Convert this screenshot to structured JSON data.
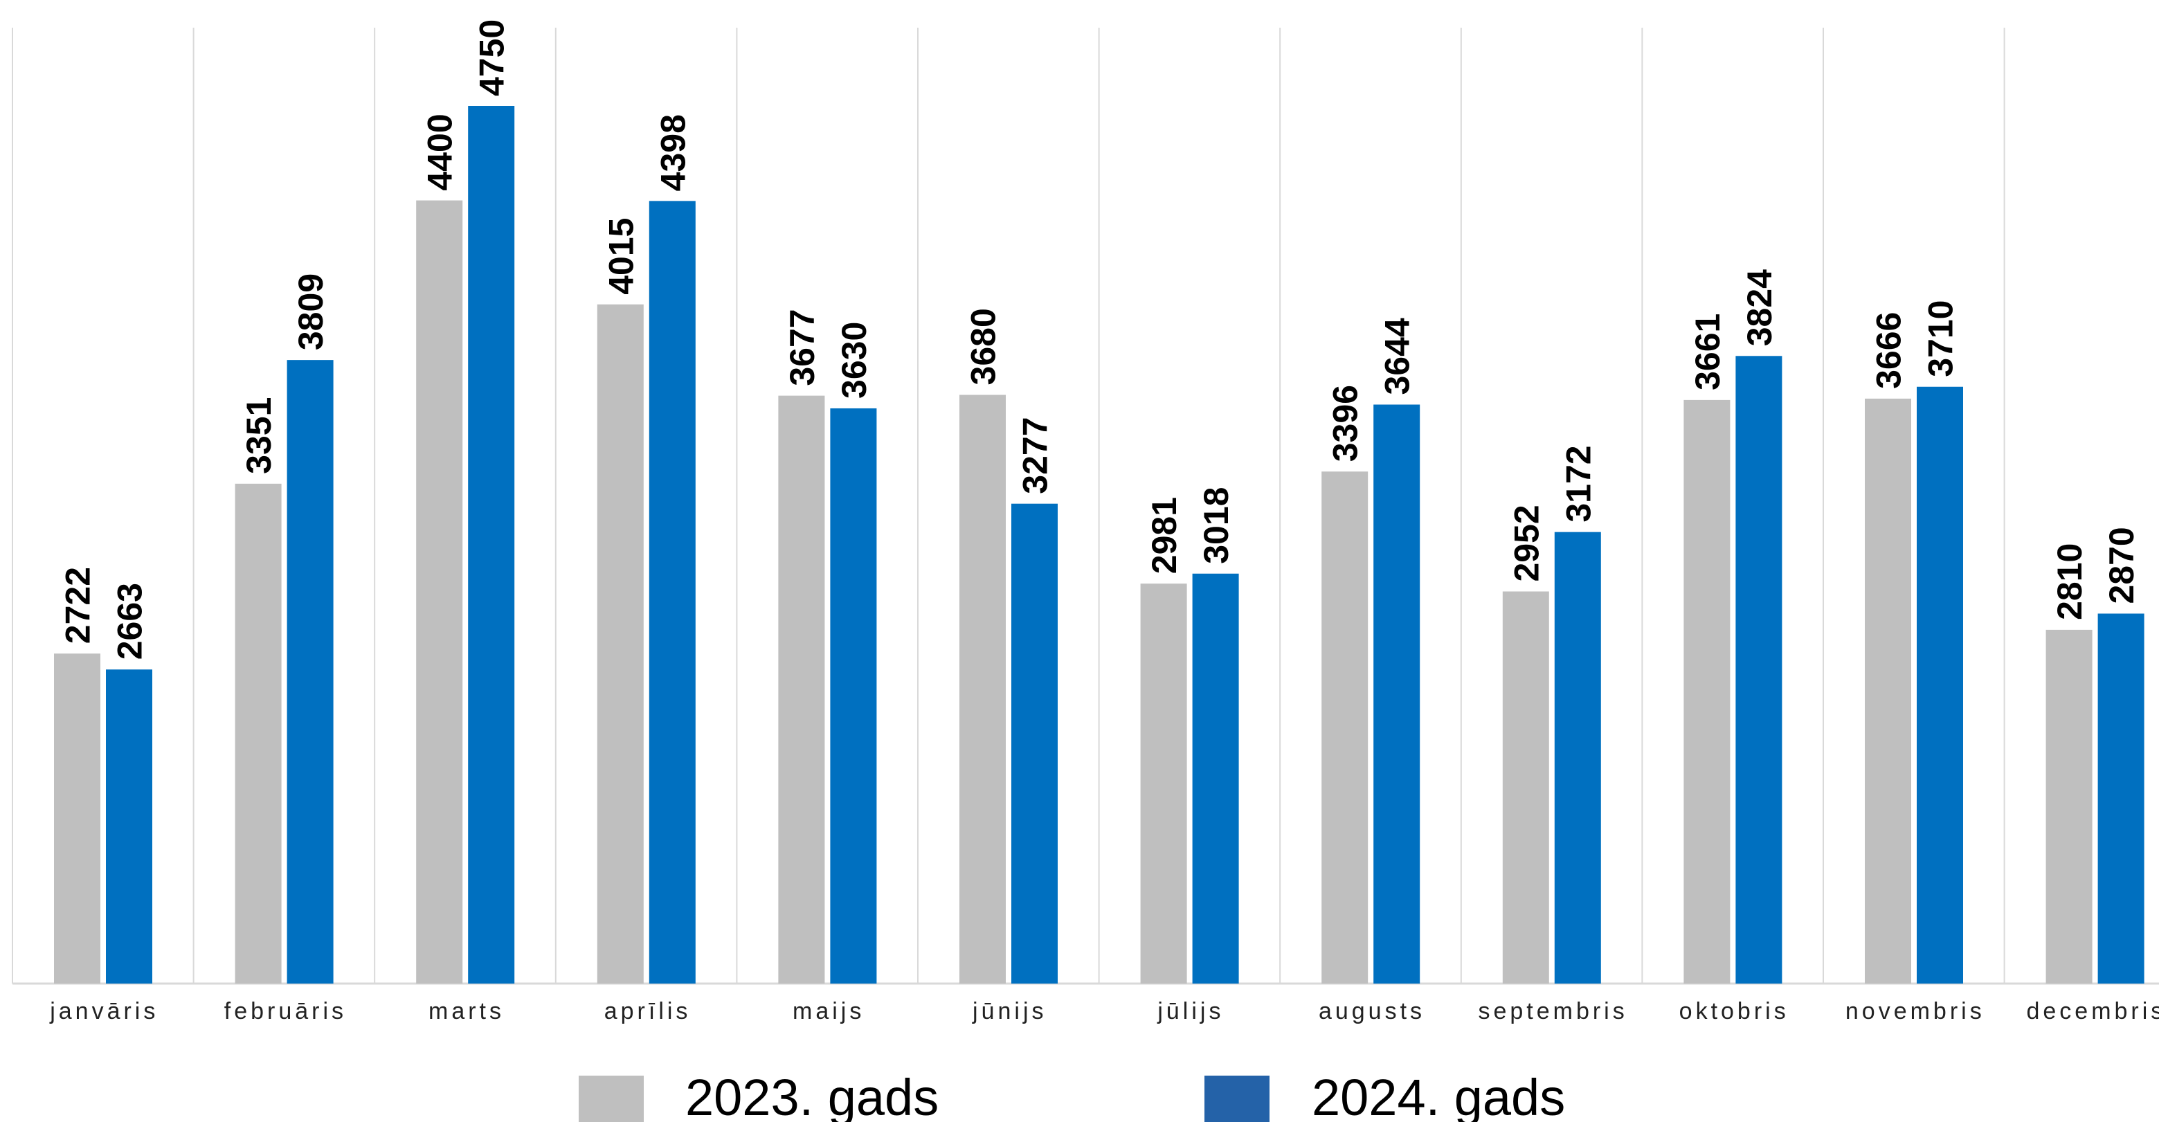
{
  "chart_data": {
    "type": "bar",
    "categories": [
      "janvāris",
      "februāris",
      "marts",
      "aprīlis",
      "maijs",
      "jūnijs",
      "jūlijs",
      "augusts",
      "septembris",
      "oktobris",
      "novembris",
      "decembris"
    ],
    "series": [
      {
        "name": "2023. gads",
        "color": "#bfbfbf",
        "values": [
          2722,
          3351,
          4400,
          4015,
          3677,
          3680,
          2981,
          3396,
          2952,
          3661,
          3666,
          2810
        ]
      },
      {
        "name": "2024. gads",
        "color": "#0070c0",
        "values": [
          2663,
          3809,
          4750,
          4398,
          3630,
          3277,
          3018,
          3644,
          3172,
          3824,
          3710,
          2870
        ]
      }
    ],
    "legend_swatch_colors": [
      "#bfbfbf",
      "#2462a8"
    ],
    "ylim": [
      1500,
      5000
    ],
    "grid": "vertical-separators",
    "legend_position": "bottom"
  }
}
